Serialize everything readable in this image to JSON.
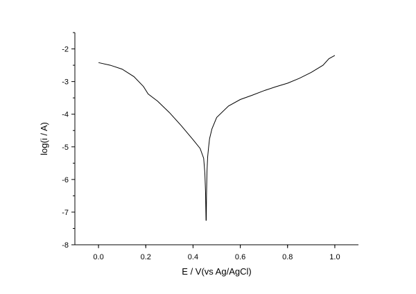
{
  "chart_data": {
    "type": "line",
    "title": "",
    "xlabel": "E / V(vs Ag/AgCl)",
    "ylabel": "log(i / A)",
    "xlim": [
      -0.1,
      1.1
    ],
    "ylim": [
      -8,
      -1.5
    ],
    "x_ticks": [
      0.0,
      0.2,
      0.4,
      0.6,
      0.8,
      1.0
    ],
    "x_tick_labels": [
      "0.0",
      "0.2",
      "0.4",
      "0.6",
      "0.8",
      "1.0"
    ],
    "y_ticks": [
      -8,
      -7,
      -6,
      -5,
      -4,
      -3,
      -2
    ],
    "y_tick_labels": [
      "-8",
      "-7",
      "-6",
      "-5",
      "-4",
      "-3",
      "-2"
    ],
    "grid": false,
    "legend": "none",
    "line_color": "#000000",
    "series": [
      {
        "x": [
          0.0,
          0.05,
          0.1,
          0.15,
          0.19,
          0.21,
          0.25,
          0.3,
          0.35,
          0.4,
          0.43,
          0.445,
          0.45,
          0.453,
          0.455,
          0.456,
          0.457,
          0.459,
          0.462,
          0.466,
          0.47,
          0.48,
          0.5,
          0.55,
          0.6,
          0.65,
          0.7,
          0.75,
          0.8,
          0.85,
          0.9,
          0.95,
          0.975,
          1.0
        ],
        "y": [
          -2.42,
          -2.5,
          -2.62,
          -2.85,
          -3.15,
          -3.38,
          -3.6,
          -3.95,
          -4.35,
          -4.78,
          -5.05,
          -5.35,
          -5.8,
          -6.4,
          -7.25,
          -7.25,
          -6.5,
          -5.75,
          -5.3,
          -5.0,
          -4.75,
          -4.45,
          -4.1,
          -3.75,
          -3.55,
          -3.42,
          -3.28,
          -3.16,
          -3.05,
          -2.9,
          -2.72,
          -2.5,
          -2.3,
          -2.2
        ]
      }
    ]
  }
}
